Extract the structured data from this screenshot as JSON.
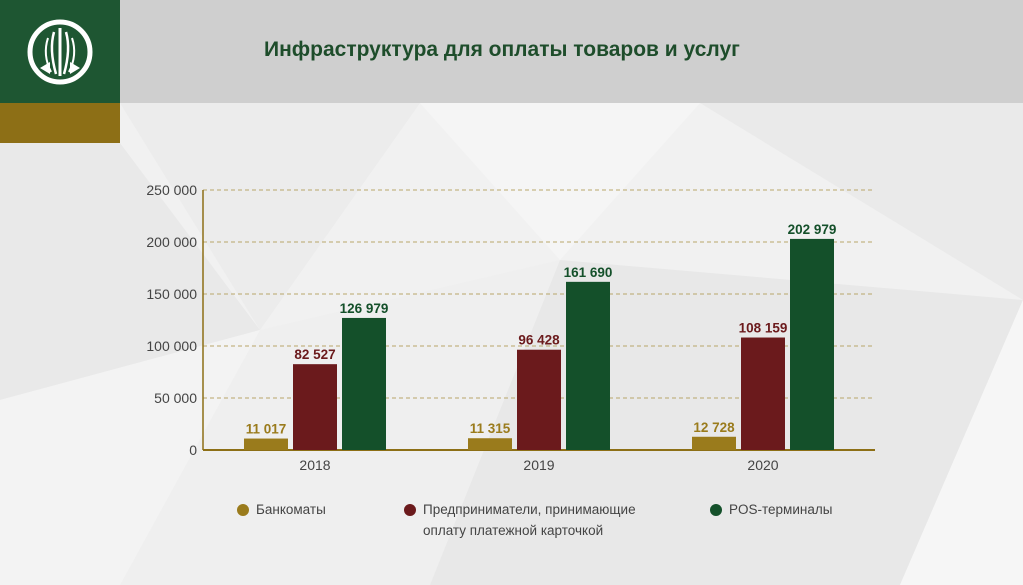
{
  "header": {
    "title": "Инфраструктура для оплаты товаров и услуг",
    "colors": {
      "brand_green": "#1e5632",
      "brand_gold": "#8d6f16",
      "header_gray": "#cfcfcf"
    },
    "logo_icon": "wheat-emblem-icon"
  },
  "chart_data": {
    "type": "bar",
    "title": "",
    "xlabel": "",
    "ylabel": "",
    "categories": [
      "2018",
      "2019",
      "2020"
    ],
    "ylim": [
      0,
      250000
    ],
    "yticks": [
      0,
      50000,
      100000,
      150000,
      200000,
      250000
    ],
    "ytick_labels": [
      "0",
      "50 000",
      "100 000",
      "150 000",
      "200 000",
      "250 000"
    ],
    "grid": "horizontal dashed",
    "legend_position": "bottom",
    "series": [
      {
        "name": "Банкоматы",
        "color": "#9a7b1c",
        "values": [
          11017,
          11315,
          12728
        ],
        "labels": [
          "11 017",
          "11 315",
          "12 728"
        ]
      },
      {
        "name": "Предприниматели, принимающие оплату платежной карточкой",
        "name_lines": [
          "Предприниматели, принимающие",
          "оплату платежной карточкой"
        ],
        "color": "#6b1a1c",
        "values": [
          82527,
          96428,
          108159
        ],
        "labels": [
          "82 527",
          "96 428",
          "108 159"
        ]
      },
      {
        "name": "POS-терминалы",
        "color": "#14502a",
        "values": [
          126979,
          161690,
          202979
        ],
        "labels": [
          "126 979",
          "161 690",
          "202 979"
        ]
      }
    ]
  }
}
